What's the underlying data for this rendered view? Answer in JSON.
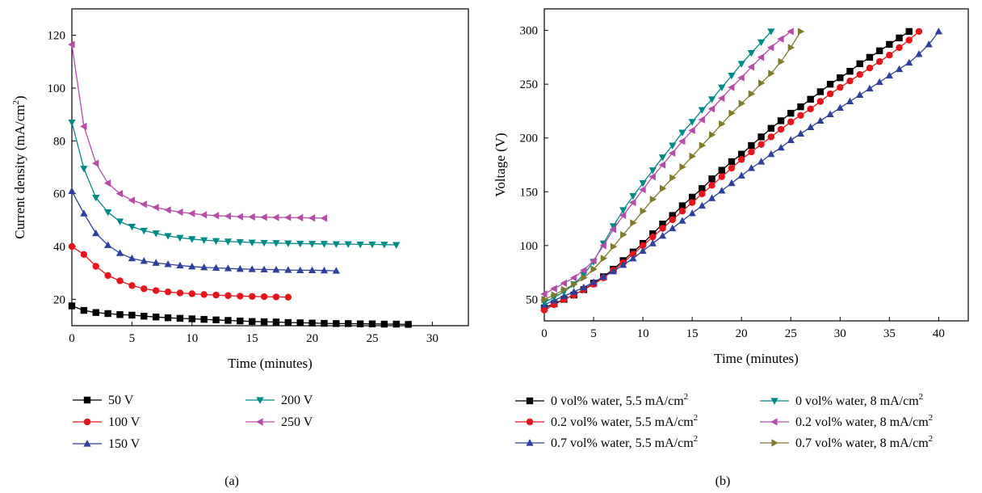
{
  "panels": [
    {
      "caption": "(a)",
      "chart_data": {
        "type": "line",
        "title": "",
        "xlabel": "Time (minutes)",
        "ylabel_main": "Current density (mA/cm",
        "ylabel_sup": "2",
        "ylabel_tail": ")",
        "xlim": [
          0,
          33
        ],
        "ylim": [
          10,
          130
        ],
        "xticks": [
          0,
          5,
          10,
          15,
          20,
          25,
          30
        ],
        "yticks": [
          20,
          40,
          60,
          80,
          100,
          120
        ],
        "grid": false,
        "legend_position": "below",
        "series": [
          {
            "name": "50 V",
            "color": "#000000",
            "marker": "square",
            "x": [
              0,
              1,
              2,
              3,
              4,
              5,
              6,
              7,
              8,
              9,
              10,
              11,
              12,
              13,
              14,
              15,
              16,
              17,
              18,
              19,
              20,
              21,
              22,
              23,
              24,
              25,
              26,
              27,
              28
            ],
            "y": [
              17.5,
              15.8,
              15.0,
              14.6,
              14.2,
              14.0,
              13.6,
              13.3,
              13.0,
              12.8,
              12.6,
              12.4,
              12.2,
              12.0,
              11.8,
              11.6,
              11.5,
              11.4,
              11.2,
              11.1,
              11.0,
              10.9,
              10.8,
              10.8,
              10.7,
              10.7,
              10.6,
              10.6,
              10.5
            ]
          },
          {
            "name": "100 V",
            "color": "#e8141b",
            "marker": "circle",
            "x": [
              0,
              1,
              2,
              3,
              4,
              5,
              6,
              7,
              8,
              9,
              10,
              11,
              12,
              13,
              14,
              15,
              16,
              17,
              18
            ],
            "y": [
              40.0,
              37.0,
              32.5,
              29.0,
              27.0,
              25.2,
              24.0,
              23.3,
              22.8,
              22.4,
              22.1,
              21.8,
              21.6,
              21.4,
              21.2,
              21.1,
              21.0,
              20.9,
              20.8
            ]
          },
          {
            "name": "150 V",
            "color": "#2e3f9e",
            "marker": "triangle-up",
            "x": [
              0,
              1,
              2,
              3,
              4,
              5,
              6,
              7,
              8,
              9,
              10,
              11,
              12,
              13,
              14,
              15,
              16,
              17,
              18,
              19,
              20,
              21,
              22
            ],
            "y": [
              61.0,
              52.5,
              45.0,
              40.5,
              37.5,
              35.5,
              34.5,
              33.8,
              33.3,
              32.8,
              32.4,
              32.1,
              31.9,
              31.7,
              31.5,
              31.4,
              31.3,
              31.2,
              31.1,
              31.0,
              31.0,
              30.9,
              30.8
            ]
          },
          {
            "name": "200 V",
            "color": "#008a87",
            "marker": "triangle-down",
            "x": [
              0,
              1,
              2,
              3,
              4,
              5,
              6,
              7,
              8,
              9,
              10,
              11,
              12,
              13,
              14,
              15,
              16,
              17,
              18,
              19,
              20,
              21,
              22,
              23,
              24,
              25,
              26,
              27
            ],
            "y": [
              87.0,
              69.5,
              58.5,
              53.0,
              49.5,
              47.5,
              46.0,
              45.0,
              44.0,
              43.3,
              42.8,
              42.4,
              42.1,
              41.9,
              41.7,
              41.5,
              41.4,
              41.3,
              41.2,
              41.1,
              41.0,
              41.0,
              40.9,
              40.9,
              40.8,
              40.8,
              40.7,
              40.6
            ]
          },
          {
            "name": "250 V",
            "color": "#b64ba8",
            "marker": "triangle-left",
            "x": [
              0,
              1,
              2,
              3,
              4,
              5,
              6,
              7,
              8,
              9,
              10,
              11,
              12,
              13,
              14,
              15,
              16,
              17,
              18,
              19,
              20,
              21
            ],
            "y": [
              116.5,
              85.5,
              71.5,
              64.0,
              60.0,
              57.5,
              56.0,
              54.8,
              53.8,
              53.0,
              52.5,
              52.0,
              51.7,
              51.5,
              51.3,
              51.2,
              51.1,
              51.0,
              51.0,
              50.9,
              50.8,
              50.7
            ]
          }
        ]
      }
    },
    {
      "caption": "(b)",
      "chart_data": {
        "type": "line",
        "title": "",
        "xlabel": "Time (minutes)",
        "ylabel": "Voltage (V)",
        "xlim": [
          0,
          43
        ],
        "ylim": [
          30,
          320
        ],
        "xticks": [
          0,
          5,
          10,
          15,
          20,
          25,
          30,
          35,
          40
        ],
        "yticks": [
          50,
          100,
          150,
          200,
          250,
          300
        ],
        "grid": false,
        "legend_position": "below",
        "series": [
          {
            "name_main": "0 vol% water, 5.5 mA/cm",
            "name_sup": "2",
            "color": "#000000",
            "marker": "square",
            "x": [
              0,
              1,
              2,
              3,
              4,
              5,
              6,
              7,
              8,
              9,
              10,
              11,
              12,
              13,
              14,
              15,
              16,
              17,
              18,
              19,
              20,
              21,
              22,
              23,
              24,
              25,
              26,
              27,
              28,
              29,
              30,
              31,
              32,
              33,
              34,
              35,
              36,
              37
            ],
            "y": [
              42,
              46,
              50,
              54,
              59,
              65,
              71,
              78,
              86,
              94,
              102,
              111,
              120,
              128,
              137,
              145,
              153,
              162,
              170,
              178,
              185,
              193,
              201,
              209,
              216,
              223,
              229,
              236,
              243,
              250,
              256,
              262,
              269,
              275,
              281,
              287,
              293,
              299
            ]
          },
          {
            "name_main": "0.2 vol% water, 5.5 mA/cm",
            "name_sup": "2",
            "color": "#e8141b",
            "marker": "circle",
            "x": [
              0,
              1,
              2,
              3,
              4,
              5,
              6,
              7,
              8,
              9,
              10,
              11,
              12,
              13,
              14,
              15,
              16,
              17,
              18,
              19,
              20,
              21,
              22,
              23,
              24,
              25,
              26,
              27,
              28,
              29,
              30,
              31,
              32,
              33,
              34,
              35,
              36,
              37,
              38
            ],
            "y": [
              40,
              45,
              50,
              54,
              59,
              64,
              70,
              77,
              84,
              92,
              100,
              108,
              116,
              124,
              132,
              140,
              148,
              156,
              164,
              172,
              180,
              187,
              194,
              201,
              208,
              215,
              221,
              227,
              234,
              241,
              247,
              253,
              259,
              265,
              271,
              277,
              284,
              291,
              299
            ]
          },
          {
            "name_main": "0.7 vol% water, 5.5 mA/cm",
            "name_sup": "2",
            "color": "#2e3f9e",
            "marker": "triangle-up",
            "x": [
              0,
              1,
              2,
              3,
              4,
              5,
              6,
              7,
              8,
              9,
              10,
              11,
              12,
              13,
              14,
              15,
              16,
              17,
              18,
              19,
              20,
              21,
              22,
              23,
              24,
              25,
              26,
              27,
              28,
              29,
              30,
              31,
              32,
              33,
              34,
              35,
              36,
              37,
              38,
              39,
              40
            ],
            "y": [
              45,
              49,
              53,
              57,
              61,
              66,
              71,
              76,
              82,
              88,
              95,
              102,
              109,
              116,
              123,
              130,
              137,
              144,
              151,
              158,
              165,
              172,
              178,
              185,
              191,
              198,
              204,
              210,
              216,
              222,
              228,
              234,
              240,
              246,
              252,
              258,
              264,
              270,
              278,
              287,
              299
            ]
          },
          {
            "name_main": "0 vol% water, 8 mA/cm",
            "name_sup": "2",
            "color": "#008a87",
            "marker": "triangle-down",
            "x": [
              0,
              1,
              2,
              3,
              4,
              5,
              6,
              7,
              8,
              9,
              10,
              11,
              12,
              13,
              14,
              15,
              16,
              17,
              18,
              19,
              20,
              21,
              22,
              23
            ],
            "y": [
              47,
              52,
              57,
              64,
              73,
              85,
              102,
              118,
              133,
              146,
              158,
              170,
              182,
              193,
              205,
              215,
              226,
              236,
              247,
              258,
              269,
              279,
              289,
              299
            ]
          },
          {
            "name_main": "0.2 vol% water, 8 mA/cm",
            "name_sup": "2",
            "color": "#b64ba8",
            "marker": "triangle-left",
            "x": [
              0,
              1,
              2,
              3,
              4,
              5,
              6,
              7,
              8,
              9,
              10,
              11,
              12,
              13,
              14,
              15,
              16,
              17,
              18,
              19,
              20,
              21,
              22,
              23,
              24,
              25
            ],
            "y": [
              55,
              60,
              65,
              70,
              77,
              86,
              100,
              115,
              128,
              140,
              152,
              164,
              175,
              186,
              197,
              207,
              217,
              227,
              237,
              247,
              256,
              266,
              275,
              284,
              292,
              299
            ]
          },
          {
            "name_main": "0.7 vol% water, 8 mA/cm",
            "name_sup": "2",
            "color": "#7f7b2a",
            "marker": "triangle-right",
            "x": [
              0,
              1,
              2,
              3,
              4,
              5,
              6,
              7,
              8,
              9,
              10,
              11,
              12,
              13,
              14,
              15,
              16,
              17,
              18,
              19,
              20,
              21,
              22,
              23,
              24,
              25,
              26
            ],
            "y": [
              50,
              54,
              59,
              64,
              70,
              78,
              88,
              99,
              110,
              121,
              132,
              143,
              153,
              163,
              173,
              183,
              193,
              203,
              213,
              223,
              232,
              241,
              251,
              260,
              271,
              284,
              299
            ]
          }
        ]
      }
    }
  ]
}
